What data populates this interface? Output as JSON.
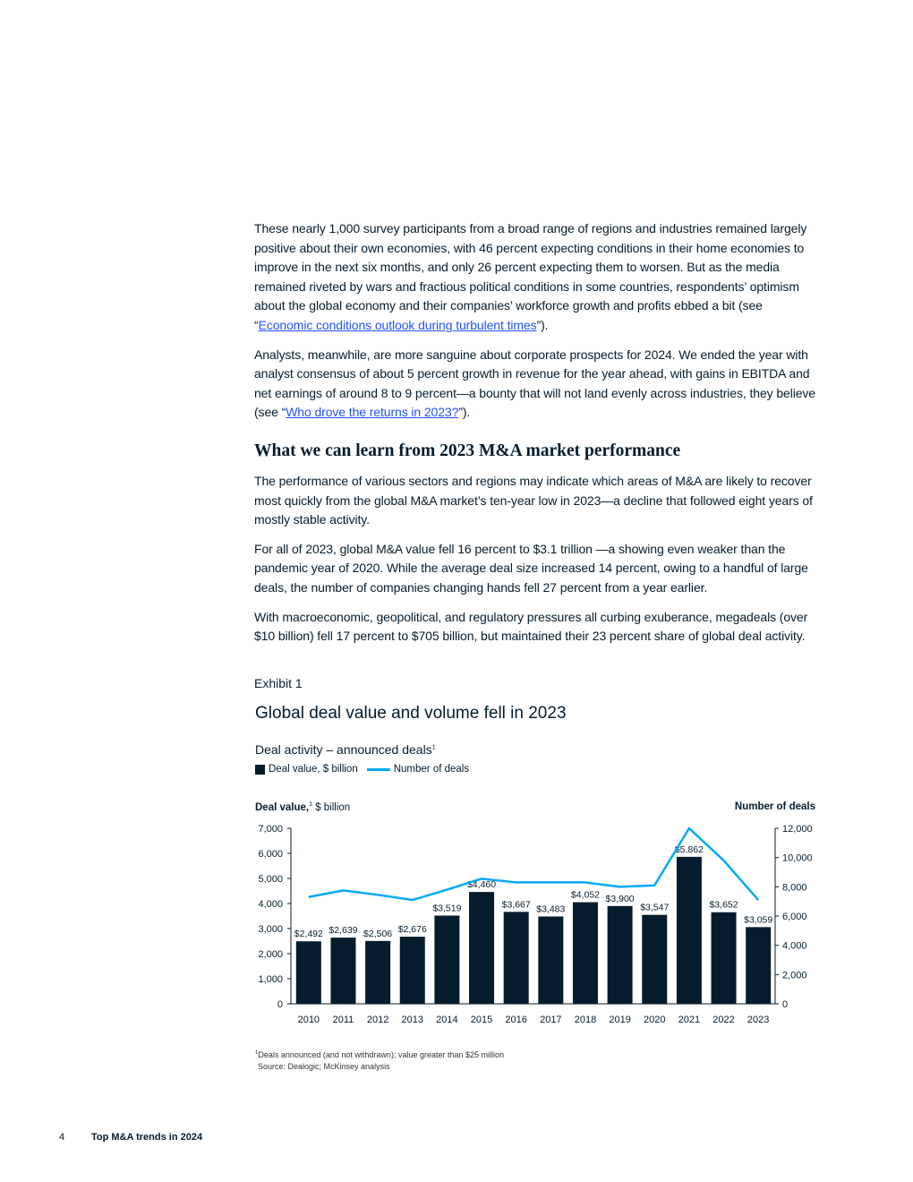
{
  "paragraphs": {
    "p1_pre": "These nearly 1,000 survey participants from a broad range of regions and industries remained largely positive about their own economies, with 46 percent expecting conditions in their home economies to improve in the next six months, and only 26 percent expecting them to worsen. But as the media remained riveted by wars and fractious political conditions in some countries, respondents’ optimism about the global economy and their companies’ workforce growth and profits ebbed a bit (see “",
    "p1_link": "Economic conditions outlook during turbulent times",
    "p1_post": "”).",
    "p2_pre": "Analysts, meanwhile, are more sanguine about corporate prospects for 2024. We ended the year with analyst consensus of about 5 percent growth in revenue for the year ahead, with gains in EBITDA and net earnings of around 8 to 9 percent—a bounty that will not land evenly across industries, they believe (see “",
    "p2_link": "Who drove the returns in 2023?",
    "p2_post": "”).",
    "heading": "What we can learn from 2023 M&A market performance",
    "p3": "The performance of various sectors and regions may indicate which areas of M&A are likely to recover most quickly from the global M&A market’s ten-year low in 2023—a decline that followed eight years of mostly stable activity.",
    "p4": "For all of 2023, global M&A value fell 16 percent to $3.1 trillion —a showing even weaker than the pandemic year of 2020. While the average deal size increased 14 percent, owing to a handful of large deals, the number of companies changing hands fell 27 percent from a year earlier.",
    "p5": "With macroeconomic, geopolitical, and regulatory pressures all curbing exuberance, megadeals (over $10 billion) fell 17 percent to $705 billion, but maintained their 23 percent share of global deal activity."
  },
  "exhibit": {
    "label": "Exhibit 1",
    "title": "Global deal value and volume fell in 2023",
    "subtitle": "Deal activity – announced deals",
    "subtitle_sup": "1",
    "legend_bar": "Deal value, $ billion",
    "legend_line": "Number of deals",
    "left_axis_bold": "Deal value,",
    "left_axis_sup": "1",
    "left_axis_unit": " $ billion",
    "right_axis": "Number of deals",
    "footnote_sup": "1",
    "footnote": "Deals announced (and not withdrawn); value greater than $25 million",
    "source": "Source: Dealogic; McKinsey analysis"
  },
  "chart_data": {
    "type": "bar",
    "categories": [
      "2010",
      "2011",
      "2012",
      "2013",
      "2014",
      "2015",
      "2016",
      "2017",
      "2018",
      "2019",
      "2020",
      "2021",
      "2022",
      "2023"
    ],
    "series": [
      {
        "name": "Deal value, $ billion",
        "type": "bar",
        "axis": "left",
        "values": [
          2492,
          2639,
          2506,
          2676,
          3519,
          4460,
          3667,
          3483,
          4052,
          3900,
          3547,
          5862,
          3652,
          3059
        ],
        "labels": [
          "$2,492",
          "$2,639",
          "$2,506",
          "$2,676",
          "$3,519",
          "$4,460",
          "$3,667",
          "$3,483",
          "$4,052",
          "$3,900",
          "$3,547",
          "$5,862",
          "$3,652",
          "$3,059"
        ]
      },
      {
        "name": "Number of deals",
        "type": "line",
        "axis": "right",
        "values": [
          7300,
          7750,
          7450,
          7100,
          7800,
          8550,
          8300,
          8300,
          8300,
          8000,
          8100,
          12000,
          9800,
          7100
        ]
      }
    ],
    "ylim_left": [
      0,
      7000
    ],
    "yticks_left": [
      "0",
      "1,000",
      "2,000",
      "3,000",
      "4,000",
      "5,000",
      "6,000",
      "7,000"
    ],
    "ylim_right": [
      0,
      12000
    ],
    "yticks_right": [
      "0",
      "2,000",
      "4,000",
      "6,000",
      "8,000",
      "10,000",
      "12,000"
    ],
    "colors": {
      "bar": "#051c2c",
      "line": "#00a9f4"
    }
  },
  "footer": {
    "page": "4",
    "title": "Top M&A trends in 2024"
  }
}
